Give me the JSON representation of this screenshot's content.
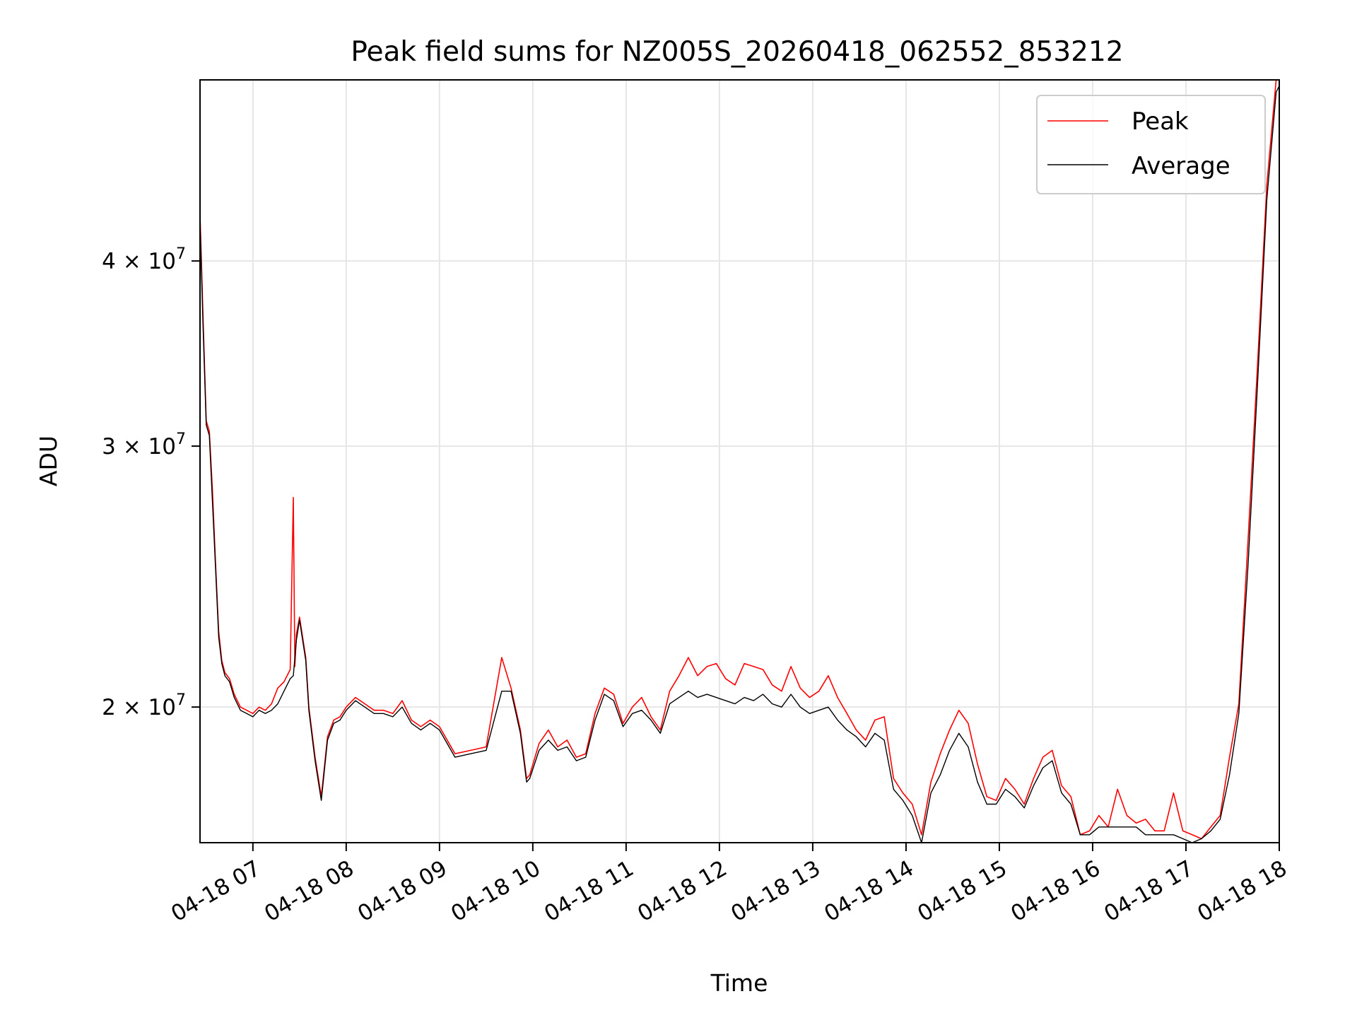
{
  "chart_data": {
    "type": "line",
    "title": "Peak field sums for NZ005S_20260418_062552_853212",
    "xlabel": "Time",
    "ylabel": "ADU",
    "y_scale": "log",
    "x_range": [
      "2026-04-18 06:26",
      "2026-04-18 18:00"
    ],
    "ylim": [
      16200000,
      53000000
    ],
    "x_ticks": [
      "04-18 07",
      "04-18 08",
      "04-18 09",
      "04-18 10",
      "04-18 11",
      "04-18 12",
      "04-18 13",
      "04-18 14",
      "04-18 15",
      "04-18 16",
      "04-18 17",
      "04-18 18"
    ],
    "y_ticks": [
      {
        "value": 20000000,
        "mantissa": "2",
        "exponent": "7"
      },
      {
        "value": 30000000,
        "mantissa": "3",
        "exponent": "7"
      },
      {
        "value": 40000000,
        "mantissa": "4",
        "exponent": "7"
      }
    ],
    "grid": true,
    "legend_position": "top-right",
    "series": [
      {
        "name": "Peak",
        "color": "#ff0000",
        "x": [
          "06:26",
          "06:28",
          "06:30",
          "06:32",
          "06:34",
          "06:36",
          "06:38",
          "06:40",
          "06:42",
          "06:45",
          "06:48",
          "06:52",
          "06:56",
          "07:00",
          "07:04",
          "07:08",
          "07:12",
          "07:16",
          "07:20",
          "07:24",
          "07:26",
          "07:27",
          "07:28",
          "07:30",
          "07:34",
          "07:36",
          "07:40",
          "07:44",
          "07:48",
          "07:52",
          "07:56",
          "08:00",
          "08:06",
          "08:12",
          "08:18",
          "08:24",
          "08:30",
          "08:36",
          "08:42",
          "08:48",
          "08:54",
          "09:00",
          "09:10",
          "09:20",
          "09:30",
          "09:40",
          "09:46",
          "09:52",
          "09:56",
          "09:58",
          "10:04",
          "10:10",
          "10:16",
          "10:22",
          "10:28",
          "10:34",
          "10:40",
          "10:46",
          "10:52",
          "10:58",
          "11:04",
          "11:10",
          "11:16",
          "11:22",
          "11:28",
          "11:34",
          "11:40",
          "11:46",
          "11:52",
          "11:58",
          "12:04",
          "12:10",
          "12:16",
          "12:22",
          "12:28",
          "12:34",
          "12:40",
          "12:46",
          "12:52",
          "12:58",
          "13:04",
          "13:10",
          "13:16",
          "13:22",
          "13:28",
          "13:34",
          "13:40",
          "13:46",
          "13:52",
          "13:58",
          "14:04",
          "14:10",
          "14:16",
          "14:22",
          "14:28",
          "14:34",
          "14:40",
          "14:46",
          "14:52",
          "14:58",
          "15:04",
          "15:10",
          "15:16",
          "15:22",
          "15:28",
          "15:34",
          "15:40",
          "15:46",
          "15:52",
          "15:58",
          "16:04",
          "16:10",
          "16:16",
          "16:22",
          "16:28",
          "16:34",
          "16:40",
          "16:46",
          "16:52",
          "16:58",
          "17:04",
          "17:10",
          "17:16",
          "17:22",
          "17:28",
          "17:34",
          "17:40",
          "17:46",
          "17:52",
          "17:58",
          "18:00"
        ],
        "values": [
          43000000,
          36500000,
          31200000,
          30700000,
          28000000,
          25000000,
          22500000,
          21500000,
          21100000,
          20900000,
          20400000,
          20000000,
          19900000,
          19800000,
          20000000,
          19900000,
          20100000,
          20600000,
          20800000,
          21200000,
          27700000,
          21300000,
          22400000,
          23000000,
          21600000,
          20000000,
          18500000,
          17400000,
          19100000,
          19600000,
          19700000,
          20000000,
          20300000,
          20100000,
          19900000,
          19900000,
          19800000,
          20200000,
          19600000,
          19400000,
          19600000,
          19400000,
          18600000,
          18700000,
          18800000,
          21600000,
          20600000,
          19300000,
          17900000,
          18000000,
          18900000,
          19300000,
          18800000,
          19000000,
          18500000,
          18600000,
          19800000,
          20600000,
          20400000,
          19500000,
          20000000,
          20300000,
          19700000,
          19300000,
          20500000,
          21000000,
          21600000,
          21000000,
          21300000,
          21400000,
          20900000,
          20700000,
          21400000,
          21300000,
          21200000,
          20700000,
          20500000,
          21300000,
          20600000,
          20300000,
          20500000,
          21000000,
          20300000,
          19800000,
          19300000,
          19000000,
          19600000,
          19700000,
          17900000,
          17500000,
          17200000,
          16400000,
          17800000,
          18600000,
          19300000,
          19900000,
          19500000,
          18300000,
          17400000,
          17300000,
          17900000,
          17600000,
          17200000,
          17900000,
          18500000,
          18700000,
          17700000,
          17400000,
          16400000,
          16500000,
          16900000,
          16600000,
          17600000,
          16900000,
          16700000,
          16800000,
          16500000,
          16500000,
          17500000,
          16500000,
          16400000,
          16300000,
          16600000,
          16900000,
          18500000,
          20100000,
          26000000,
          34000000,
          45000000,
          53000000,
          53000000
        ]
      },
      {
        "name": "Average",
        "color": "#000000",
        "x": [
          "06:26",
          "06:28",
          "06:30",
          "06:32",
          "06:34",
          "06:36",
          "06:38",
          "06:40",
          "06:42",
          "06:45",
          "06:48",
          "06:52",
          "06:56",
          "07:00",
          "07:04",
          "07:08",
          "07:12",
          "07:16",
          "07:20",
          "07:24",
          "07:26",
          "07:28",
          "07:30",
          "07:34",
          "07:36",
          "07:40",
          "07:44",
          "07:48",
          "07:52",
          "07:56",
          "08:00",
          "08:06",
          "08:12",
          "08:18",
          "08:24",
          "08:30",
          "08:36",
          "08:42",
          "08:48",
          "08:54",
          "09:00",
          "09:10",
          "09:20",
          "09:30",
          "09:40",
          "09:46",
          "09:52",
          "09:56",
          "09:58",
          "10:04",
          "10:10",
          "10:16",
          "10:22",
          "10:28",
          "10:34",
          "10:40",
          "10:46",
          "10:52",
          "10:58",
          "11:04",
          "11:10",
          "11:16",
          "11:22",
          "11:28",
          "11:34",
          "11:40",
          "11:46",
          "11:52",
          "11:58",
          "12:04",
          "12:10",
          "12:16",
          "12:22",
          "12:28",
          "12:34",
          "12:40",
          "12:46",
          "12:52",
          "12:58",
          "13:04",
          "13:10",
          "13:16",
          "13:22",
          "13:28",
          "13:34",
          "13:40",
          "13:46",
          "13:52",
          "13:58",
          "14:04",
          "14:10",
          "14:16",
          "14:22",
          "14:28",
          "14:34",
          "14:40",
          "14:46",
          "14:52",
          "14:58",
          "15:04",
          "15:10",
          "15:16",
          "15:22",
          "15:28",
          "15:34",
          "15:40",
          "15:46",
          "15:52",
          "15:58",
          "16:04",
          "16:10",
          "16:16",
          "16:22",
          "16:28",
          "16:34",
          "16:40",
          "16:46",
          "16:52",
          "16:58",
          "17:04",
          "17:10",
          "17:16",
          "17:22",
          "17:28",
          "17:34",
          "17:40",
          "17:46",
          "17:52",
          "17:58",
          "18:00"
        ],
        "values": [
          42500000,
          36000000,
          31000000,
          30500000,
          27500000,
          24800000,
          22300000,
          21400000,
          21000000,
          20800000,
          20300000,
          19900000,
          19800000,
          19700000,
          19900000,
          19800000,
          19900000,
          20100000,
          20500000,
          20900000,
          21000000,
          22200000,
          22900000,
          21500000,
          19900000,
          18400000,
          17300000,
          19000000,
          19500000,
          19600000,
          19900000,
          20200000,
          20000000,
          19800000,
          19800000,
          19700000,
          20000000,
          19500000,
          19300000,
          19500000,
          19300000,
          18500000,
          18600000,
          18700000,
          20500000,
          20500000,
          19200000,
          17800000,
          17900000,
          18700000,
          19000000,
          18700000,
          18800000,
          18400000,
          18500000,
          19600000,
          20400000,
          20200000,
          19400000,
          19800000,
          19900000,
          19600000,
          19200000,
          20100000,
          20300000,
          20500000,
          20300000,
          20400000,
          20300000,
          20200000,
          20100000,
          20300000,
          20200000,
          20400000,
          20100000,
          20000000,
          20400000,
          20000000,
          19800000,
          19900000,
          20000000,
          19600000,
          19300000,
          19100000,
          18800000,
          19200000,
          19000000,
          17600000,
          17300000,
          16900000,
          16200000,
          17500000,
          18000000,
          18700000,
          19200000,
          18800000,
          17800000,
          17200000,
          17200000,
          17600000,
          17400000,
          17100000,
          17700000,
          18200000,
          18400000,
          17500000,
          17200000,
          16400000,
          16400000,
          16600000,
          16600000,
          16600000,
          16600000,
          16600000,
          16400000,
          16400000,
          16400000,
          16400000,
          16300000,
          16200000,
          16300000,
          16500000,
          16800000,
          18000000,
          19800000,
          25000000,
          33000000,
          44000000,
          52000000,
          52500000
        ]
      }
    ]
  }
}
